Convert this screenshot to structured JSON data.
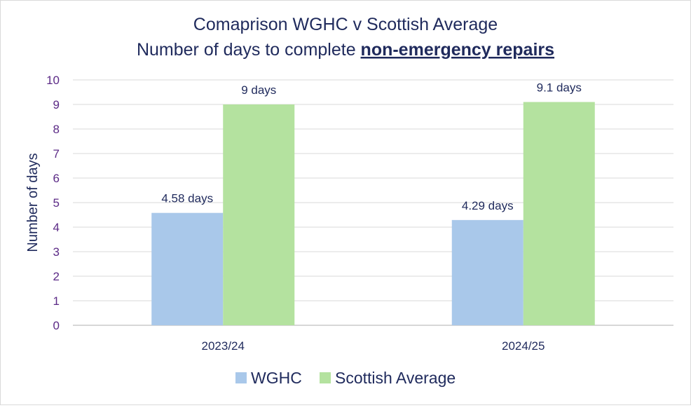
{
  "chart_data": {
    "type": "bar",
    "title_line1": "Comaprison WGHC v Scottish Average",
    "title_line2_prefix": "Number of days to complete ",
    "title_line2_emphasis": "non-emergency repairs",
    "ylabel": "Number of days",
    "xlabel": "",
    "ylim": [
      0,
      10
    ],
    "yticks": [
      "0",
      "1",
      "2",
      "3",
      "4",
      "5",
      "6",
      "7",
      "8",
      "9",
      "10"
    ],
    "categories": [
      "2023/24",
      "2024/25"
    ],
    "series": [
      {
        "name": "WGHC",
        "values": [
          4.58,
          4.29
        ],
        "labels": [
          "4.58 days",
          "4.29 days"
        ],
        "color": "#a9c8ea"
      },
      {
        "name": "Scottish Average",
        "values": [
          9,
          9.1
        ],
        "labels": [
          "9 days",
          "9.1 days"
        ],
        "color": "#b4e29f"
      }
    ],
    "colors": {
      "title": "#1f2a5c",
      "tick": "#5b2a86",
      "grid": "#d9d9d9",
      "text": "#1f2a5c"
    },
    "grid": true,
    "legend": "bottom-center"
  }
}
